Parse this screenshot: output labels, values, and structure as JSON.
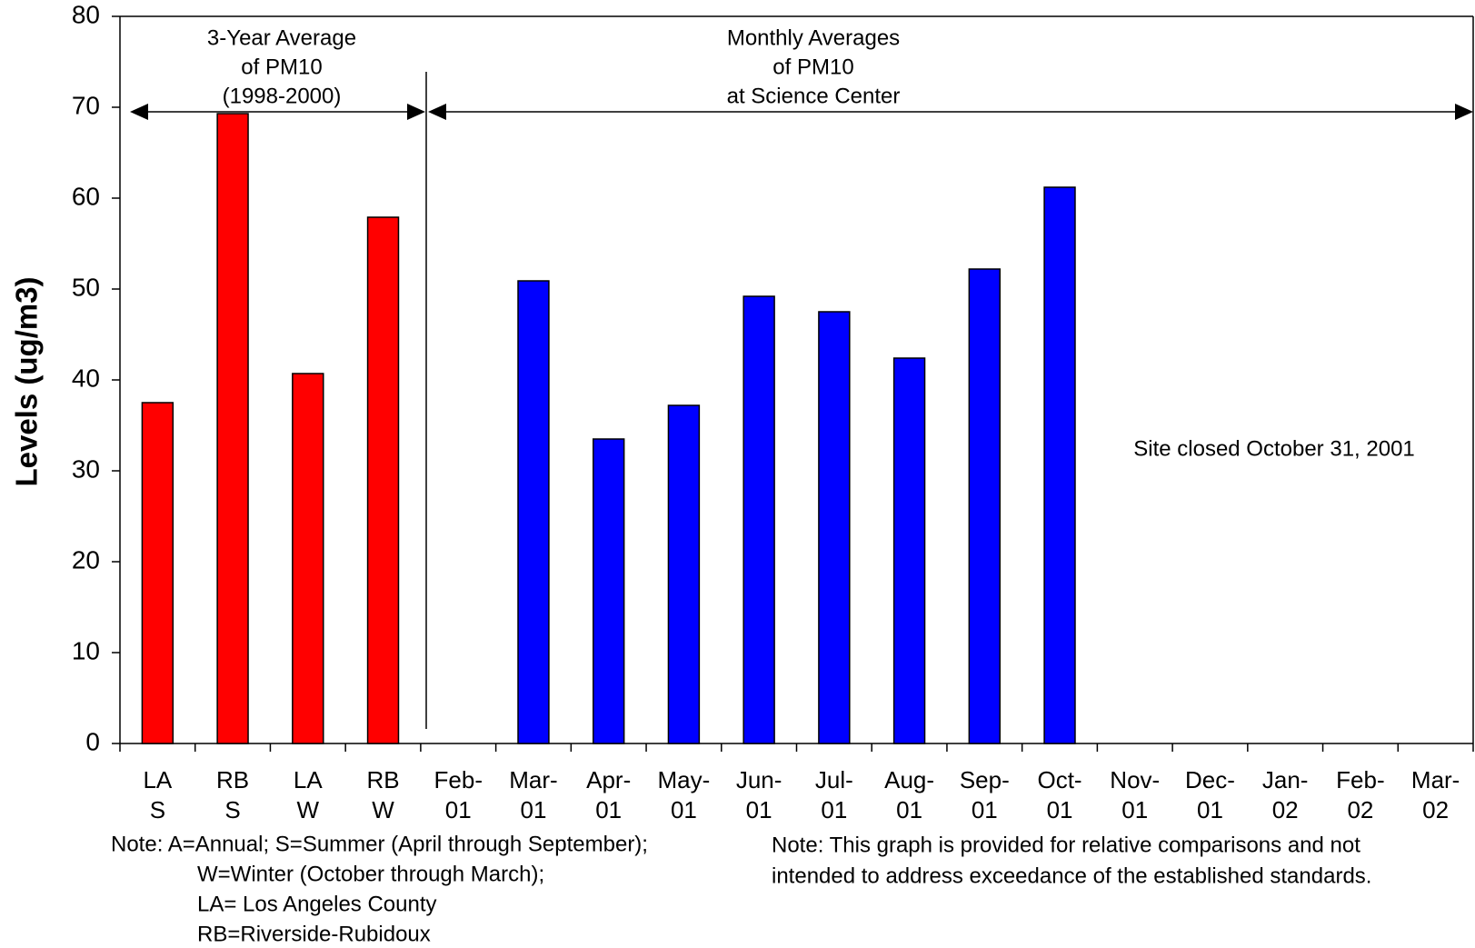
{
  "chart_data": {
    "type": "bar",
    "y_label": "Levels (ug/m3)",
    "categories": [
      [
        "LA",
        "S"
      ],
      [
        "RB",
        "S"
      ],
      [
        "LA",
        "W"
      ],
      [
        "RB",
        "W"
      ],
      [
        "Feb-",
        "01"
      ],
      [
        "Mar-",
        "01"
      ],
      [
        "Apr-",
        "01"
      ],
      [
        "May-",
        "01"
      ],
      [
        "Jun-",
        "01"
      ],
      [
        "Jul-",
        "01"
      ],
      [
        "Aug-",
        "01"
      ],
      [
        "Sep-",
        "01"
      ],
      [
        "Oct-",
        "01"
      ],
      [
        "Nov-",
        "01"
      ],
      [
        "Dec-",
        "01"
      ],
      [
        "Jan-",
        "02"
      ],
      [
        "Feb-",
        "02"
      ],
      [
        "Mar-",
        "02"
      ]
    ],
    "values": [
      37.5,
      69.3,
      40.7,
      57.9,
      null,
      50.9,
      33.5,
      37.2,
      49.2,
      47.5,
      42.4,
      52.2,
      61.2,
      null,
      null,
      null,
      null,
      null
    ],
    "colors": [
      "#ff0000",
      "#ff0000",
      "#ff0000",
      "#ff0000",
      "#0000ff",
      "#0000ff",
      "#0000ff",
      "#0000ff",
      "#0000ff",
      "#0000ff",
      "#0000ff",
      "#0000ff",
      "#0000ff",
      "#0000ff",
      "#0000ff",
      "#0000ff",
      "#0000ff",
      "#0000ff"
    ],
    "ylim": [
      0,
      80
    ],
    "yticks": [
      0,
      10,
      20,
      30,
      40,
      50,
      60,
      70,
      80
    ],
    "grid": false,
    "group_labels": [
      [
        "3-Year Average",
        "of PM10",
        "(1998-2000)"
      ],
      [
        "Monthly Averages",
        "of PM10",
        "at Science Center"
      ]
    ],
    "annotation": "Site closed October 31, 2001",
    "note_left": [
      "Note: A=Annual;  S=Summer (April through September);",
      "W=Winter (October through March);",
      "LA= Los Angeles County",
      "RB=Riverside-Rubidoux"
    ],
    "note_right": [
      "Note: This graph is provided for relative comparisons and not",
      "intended to address exceedance of the established standards."
    ]
  }
}
